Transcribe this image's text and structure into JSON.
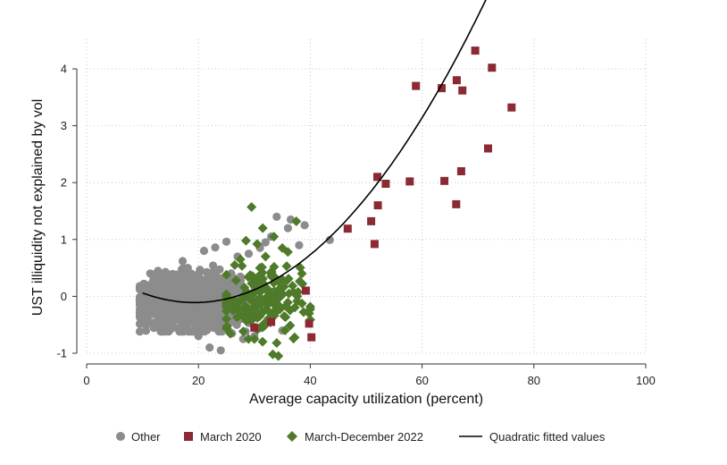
{
  "chart_data": {
    "type": "scatter",
    "xlabel": "Average capacity utilization (percent)",
    "ylabel": "UST illiquidity not explained by vol",
    "xlim": [
      0,
      100
    ],
    "ylim": [
      -1,
      4
    ],
    "x_ticks": [
      0,
      20,
      40,
      60,
      80,
      100
    ],
    "y_ticks": [
      -1,
      0,
      1,
      2,
      3,
      4
    ],
    "x_tick_labels": [
      "0",
      "20",
      "40",
      "60",
      "80",
      "100"
    ],
    "y_tick_labels": [
      "-1",
      "0",
      "1",
      "2",
      "3",
      "4"
    ],
    "grid": "dotted",
    "legend": "bottom",
    "colors": {
      "other": "#8c8c8c",
      "march2020": "#8b2a33",
      "mar_dec_2022": "#4e7a2a",
      "fit": "#000000",
      "axis": "#333333",
      "grid": "#bbbbbb"
    },
    "series": [
      {
        "name": "Other",
        "marker": "circle",
        "cloud": {
          "center_x": 19,
          "center_y": -0.1,
          "spread_x": 4.2,
          "spread_y": 0.22,
          "x_range": [
            9.5,
            30
          ],
          "y_range": [
            -0.62,
            0.62
          ],
          "count": 1500
        },
        "points": [
          [
            23,
            0.86
          ],
          [
            21,
            0.8
          ],
          [
            25,
            0.96
          ],
          [
            34,
            1.4
          ],
          [
            36.5,
            1.35
          ],
          [
            39,
            1.25
          ],
          [
            43.5,
            0.99
          ],
          [
            24,
            -0.95
          ],
          [
            22,
            -0.9
          ],
          [
            26,
            -0.65
          ],
          [
            20,
            -0.7
          ],
          [
            36,
            1.2
          ],
          [
            33,
            1.05
          ],
          [
            35,
            -0.6
          ],
          [
            38,
            0.9
          ],
          [
            32,
            0.95
          ],
          [
            27,
            0.7
          ],
          [
            29,
            0.75
          ],
          [
            31,
            0.85
          ],
          [
            30,
            -0.7
          ],
          [
            28,
            -0.75
          ]
        ]
      },
      {
        "name": "March 2020",
        "marker": "square",
        "points": [
          [
            69.5,
            4.32
          ],
          [
            72.5,
            4.02
          ],
          [
            58.9,
            3.7
          ],
          [
            63.5,
            3.66
          ],
          [
            66.2,
            3.8
          ],
          [
            67.2,
            3.62
          ],
          [
            76,
            3.32
          ],
          [
            71.8,
            2.6
          ],
          [
            67,
            2.2
          ],
          [
            64,
            2.03
          ],
          [
            66.1,
            1.62
          ],
          [
            52,
            2.1
          ],
          [
            53.5,
            1.98
          ],
          [
            57.8,
            2.02
          ],
          [
            52.1,
            1.6
          ],
          [
            50.9,
            1.32
          ],
          [
            46.7,
            1.19
          ],
          [
            51.5,
            0.92
          ],
          [
            39.2,
            0.1
          ],
          [
            39.8,
            -0.48
          ],
          [
            40.2,
            -0.72
          ],
          [
            30,
            -0.55
          ],
          [
            33,
            -0.45
          ]
        ]
      },
      {
        "name": "March-December 2022",
        "marker": "diamond",
        "cloud": {
          "center_x": 31,
          "center_y": -0.1,
          "spread_x": 3.6,
          "spread_y": 0.3,
          "x_range": [
            25,
            40
          ],
          "y_range": [
            -0.85,
            0.75
          ],
          "count": 170
        },
        "points": [
          [
            29.5,
            1.57
          ],
          [
            37.5,
            1.32
          ],
          [
            31.5,
            1.2
          ],
          [
            28.5,
            0.98
          ],
          [
            33.5,
            1.05
          ],
          [
            30.5,
            0.92
          ],
          [
            35,
            0.85
          ],
          [
            27.5,
            0.65
          ],
          [
            32,
            0.7
          ],
          [
            36,
            0.78
          ],
          [
            34,
            -0.82
          ],
          [
            33.3,
            -1.02
          ],
          [
            34.3,
            -1.05
          ],
          [
            37.2,
            -0.72
          ],
          [
            39.8,
            -0.3
          ],
          [
            26.5,
            0.55
          ],
          [
            38.5,
            0.4
          ],
          [
            30,
            -0.75
          ],
          [
            35.5,
            -0.6
          ],
          [
            31,
            0.5
          ]
        ]
      },
      {
        "name": "Quadratic fitted values",
        "marker": "line",
        "coefficients": {
          "a": 0.00196,
          "b": -0.0756,
          "c": 0.62
        },
        "x_range": [
          10,
          76
        ]
      }
    ]
  }
}
